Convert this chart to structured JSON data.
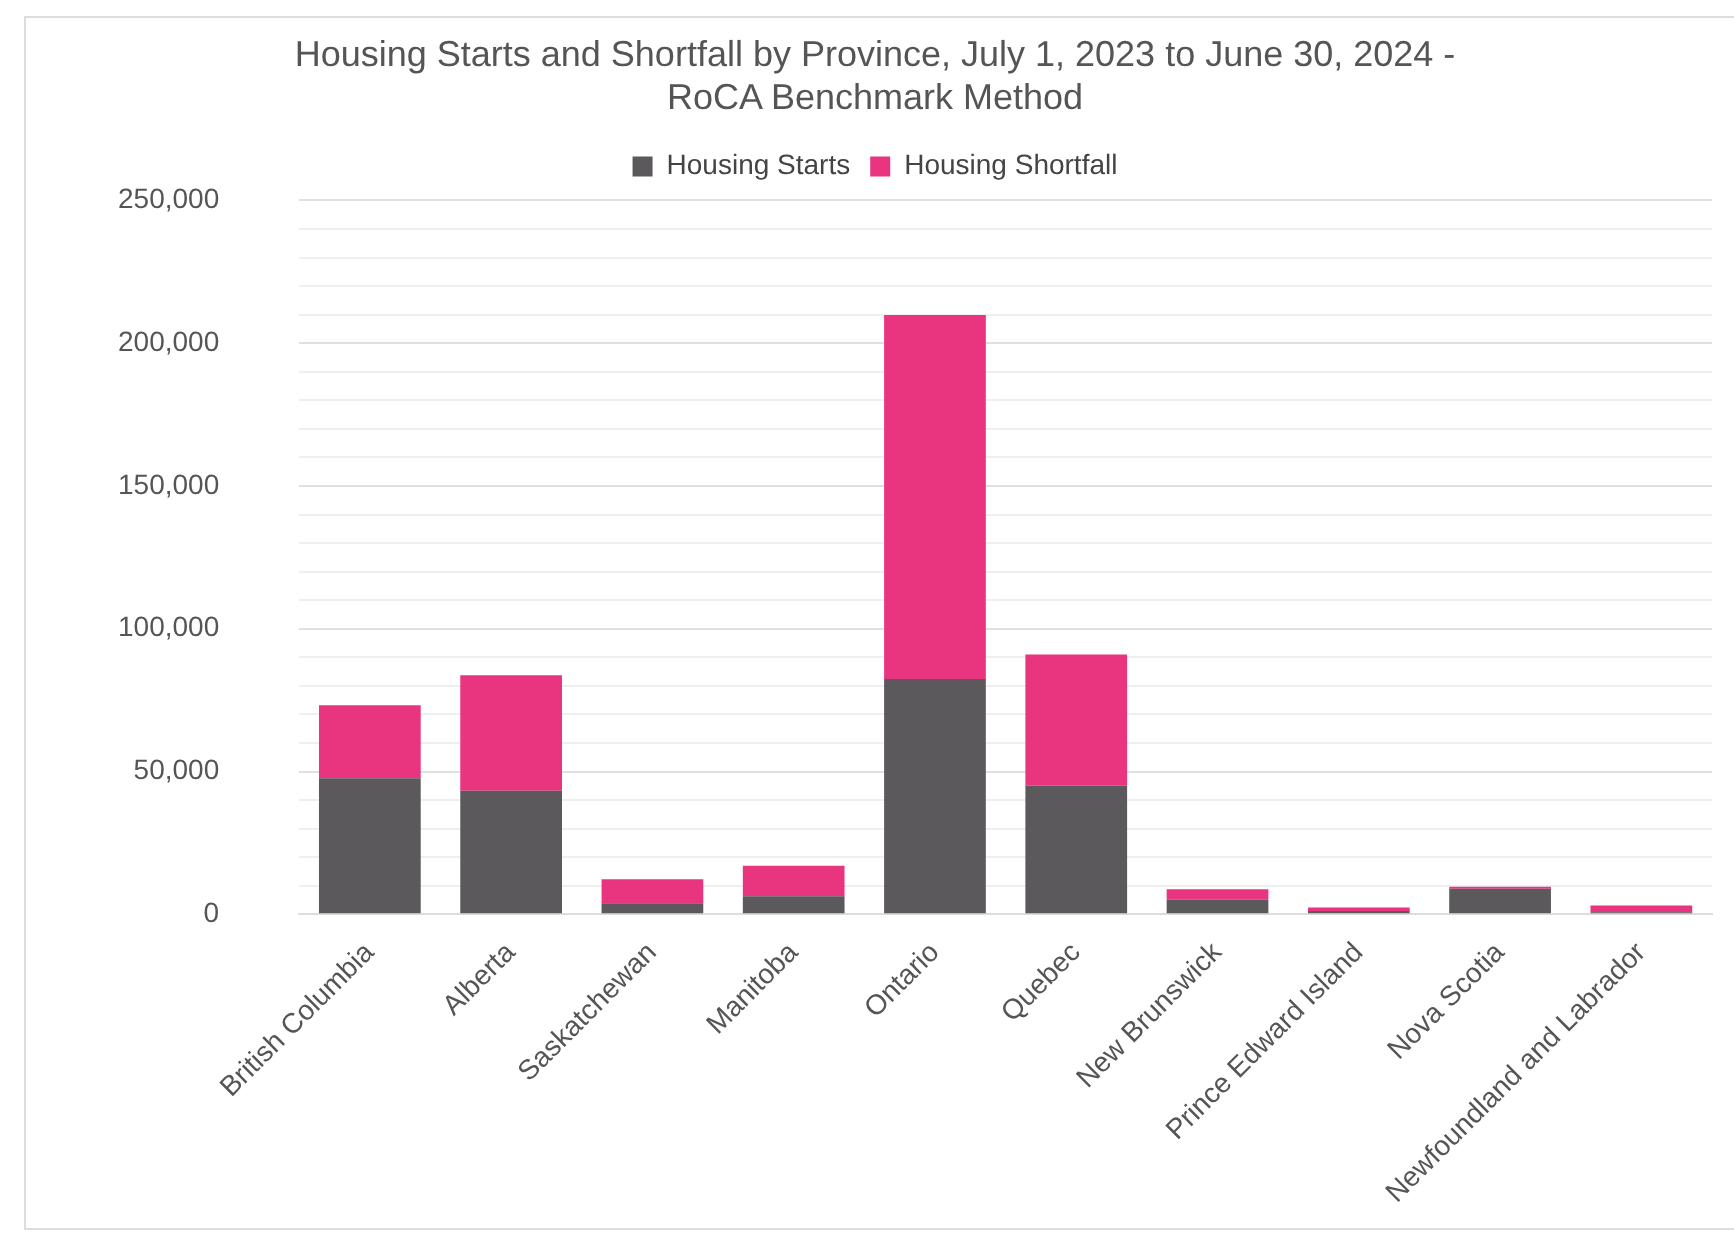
{
  "chart_data": {
    "type": "bar",
    "title": "Housing Starts and Shortfall by Province, July 1, 2023 to June 30, 2024 - RoCA Benchmark Method",
    "categories": [
      "British Columbia",
      "Alberta",
      "Saskatchewan",
      "Manitoba",
      "Ontario",
      "Quebec",
      "New Brunswick",
      "Prince Edward Island",
      "Nova Scotia",
      "Newfoundland and Labrador"
    ],
    "series": [
      {
        "name": "Housing Starts",
        "color": "#5b595c",
        "values": [
          47700,
          43300,
          3900,
          6300,
          82400,
          45100,
          5100,
          1200,
          9000,
          700
        ]
      },
      {
        "name": "Housing Shortfall",
        "color": "#e9357f",
        "values": [
          25500,
          40400,
          8400,
          10700,
          127500,
          45900,
          3700,
          1200,
          700,
          2400
        ]
      }
    ],
    "stacked": true,
    "ylim": [
      0,
      250000
    ],
    "yticks": [
      0,
      {
        "value": 10000,
        "label": null
      },
      {
        "value": 20000,
        "label": null
      },
      {
        "value": 30000,
        "label": null
      },
      {
        "value": 40000,
        "label": null
      },
      "50,000",
      {
        "value": 60000,
        "label": null
      },
      {
        "value": 70000,
        "label": null
      },
      {
        "value": 80000,
        "label": null
      },
      {
        "value": 90000,
        "label": null
      },
      {
        "value": 100000,
        "label": "100,000"
      },
      {
        "value": 110000,
        "label": null
      },
      {
        "value": 120000,
        "label": null
      },
      {
        "value": 130000,
        "label": null
      },
      {
        "value": 140000,
        "label": null
      },
      {
        "value": 150000,
        "label": "150,000"
      },
      {
        "value": 160000,
        "label": null
      },
      {
        "value": 170000,
        "label": null
      },
      {
        "value": 180000,
        "label": null
      },
      {
        "value": 190000,
        "label": null
      },
      {
        "value": 200000,
        "label": "200,000"
      },
      {
        "value": 210000,
        "label": null
      },
      {
        "value": 220000,
        "label": null
      },
      {
        "value": 230000,
        "label": null
      },
      {
        "value": 240000,
        "label": null
      },
      {
        "value": 250000,
        "label": "250,000"
      }
    ],
    "grid": "y",
    "legend": "top"
  }
}
